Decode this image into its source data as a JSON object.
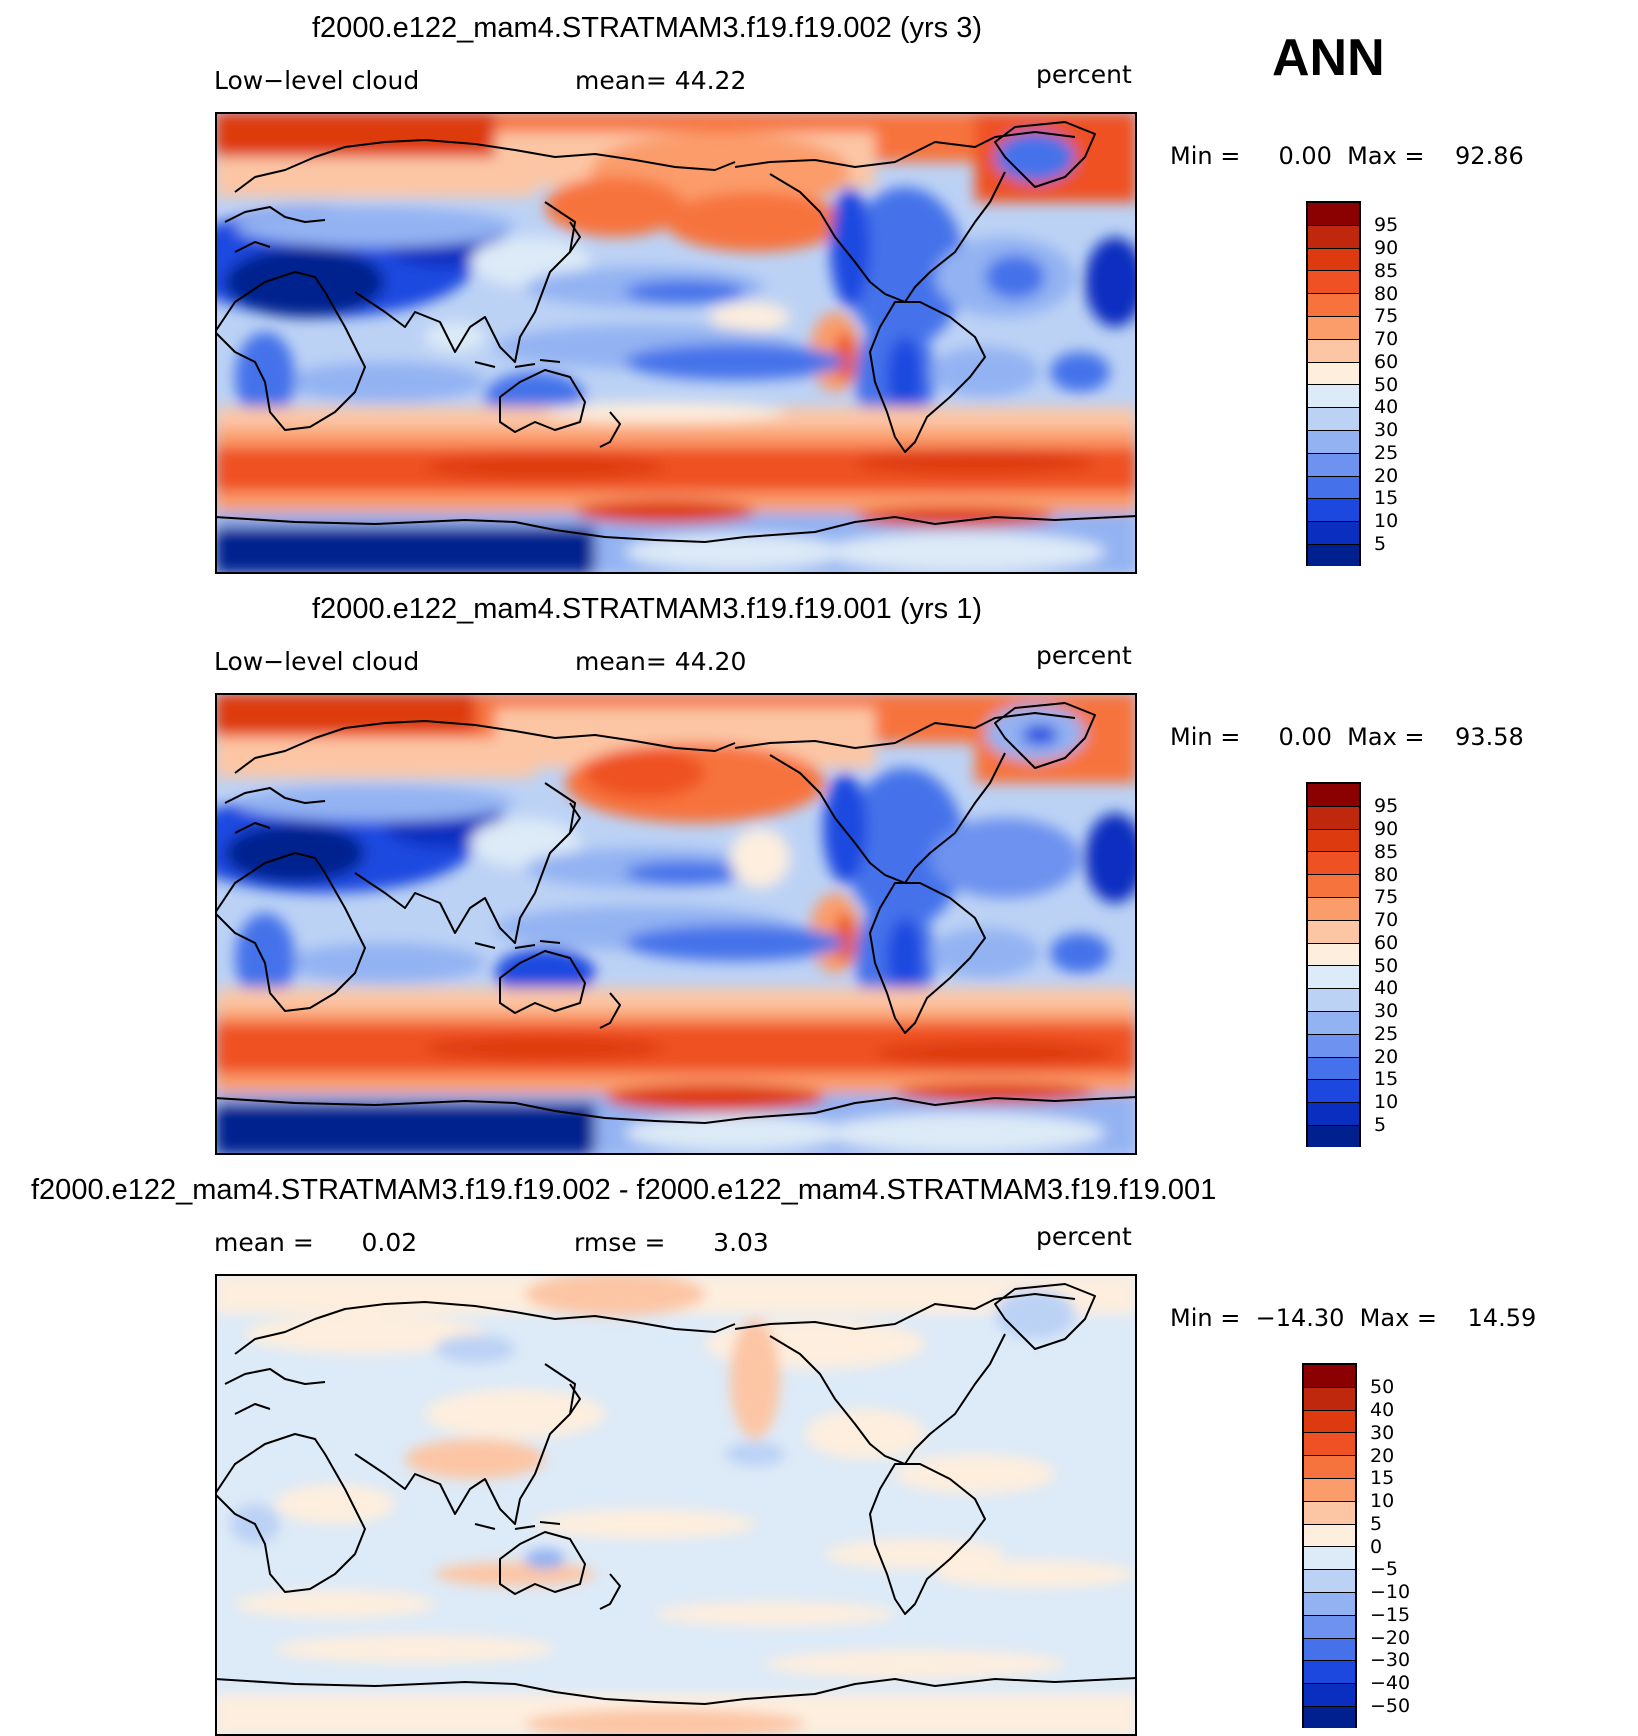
{
  "figure": {
    "season": "ANN",
    "coast_color": "#000000"
  },
  "panels": [
    {
      "title": "f2000.e122_mam4.STRATMAM3.f19.f19.002 (yrs 3)",
      "left_label": "Low−level cloud",
      "mid_label": "mean=   44.22",
      "units": "percent",
      "stats": "Min =     0.00  Max =    92.86",
      "colorbar": {
        "labels": [
          "95",
          "90",
          "85",
          "80",
          "75",
          "70",
          "60",
          "50",
          "40",
          "30",
          "25",
          "20",
          "15",
          "10",
          "5"
        ],
        "colors": [
          "#8b0000",
          "#c0280e",
          "#de3a0f",
          "#ef5124",
          "#f7733d",
          "#fb9c6b",
          "#fcc6a5",
          "#fdeede",
          "#ddeaf7",
          "#bcd2f5",
          "#93b2f2",
          "#6d92ef",
          "#4572ea",
          "#1c48e0",
          "#0a2fc0",
          "#00208f"
        ]
      }
    },
    {
      "title": "f2000.e122_mam4.STRATMAM3.f19.f19.001 (yrs 1)",
      "left_label": "Low−level cloud",
      "mid_label": "mean=   44.20",
      "units": "percent",
      "stats": "Min =     0.00  Max =    93.58",
      "colorbar": {
        "labels": [
          "95",
          "90",
          "85",
          "80",
          "75",
          "70",
          "60",
          "50",
          "40",
          "30",
          "25",
          "20",
          "15",
          "10",
          "5"
        ],
        "colors": [
          "#8b0000",
          "#c0280e",
          "#de3a0f",
          "#ef5124",
          "#f7733d",
          "#fb9c6b",
          "#fcc6a5",
          "#fdeede",
          "#ddeaf7",
          "#bcd2f5",
          "#93b2f2",
          "#6d92ef",
          "#4572ea",
          "#1c48e0",
          "#0a2fc0",
          "#00208f"
        ]
      }
    },
    {
      "title": "f2000.e122_mam4.STRATMAM3.f19.f19.002 - f2000.e122_mam4.STRATMAM3.f19.f19.001",
      "left_label": "mean =      0.02",
      "mid_label": "rmse =      3.03",
      "units": "percent",
      "stats": "Min =  −14.30  Max =    14.59",
      "colorbar": {
        "labels": [
          "50",
          "40",
          "30",
          "20",
          "15",
          "10",
          "5",
          "0",
          "−5",
          "−10",
          "−15",
          "−20",
          "−30",
          "−40",
          "−50"
        ],
        "colors": [
          "#8b0000",
          "#c0280e",
          "#de3a0f",
          "#ef5124",
          "#f7733d",
          "#fb9c6b",
          "#fcc6a5",
          "#fdeede",
          "#ddeaf7",
          "#bcd2f5",
          "#93b2f2",
          "#6d92ef",
          "#4572ea",
          "#1c48e0",
          "#0a2fc0",
          "#00208f"
        ]
      }
    }
  ]
}
